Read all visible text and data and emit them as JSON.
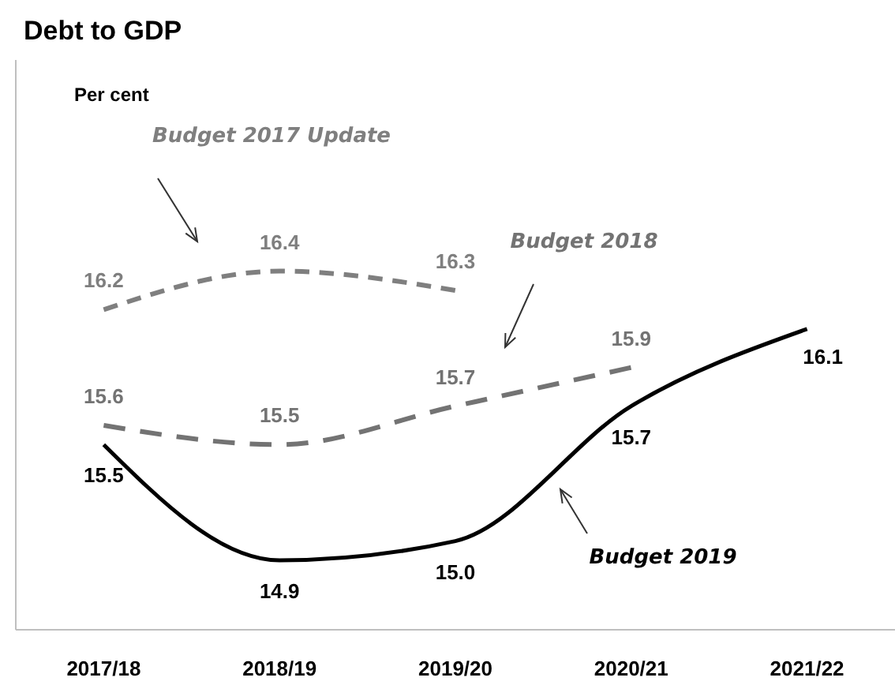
{
  "chart_data": {
    "type": "line",
    "title": "Debt to GDP",
    "annotations": [
      "Per cent"
    ],
    "categories": [
      "2017/18",
      "2018/19",
      "2019/20",
      "2020/21",
      "2021/22"
    ],
    "series": [
      {
        "name": "Budget 2017 Update",
        "color": "#7f7f7f",
        "line_style": "dashed",
        "values": [
          16.2,
          16.4,
          16.3,
          null,
          null
        ],
        "value_labels": [
          "16.2",
          "16.4",
          "16.3",
          null,
          null
        ]
      },
      {
        "name": "Budget 2018",
        "color": "#737373",
        "line_style": "dashed",
        "values": [
          15.6,
          15.5,
          15.7,
          15.9,
          null
        ],
        "value_labels": [
          "15.6",
          "15.5",
          "15.7",
          "15.9",
          null
        ]
      },
      {
        "name": "Budget 2019",
        "color": "#000000",
        "line_style": "solid",
        "values": [
          15.5,
          14.9,
          15.0,
          15.7,
          16.1
        ],
        "value_labels": [
          "15.5",
          "14.9",
          "15.0",
          "15.7",
          "16.1"
        ]
      }
    ],
    "marker": "none"
  }
}
